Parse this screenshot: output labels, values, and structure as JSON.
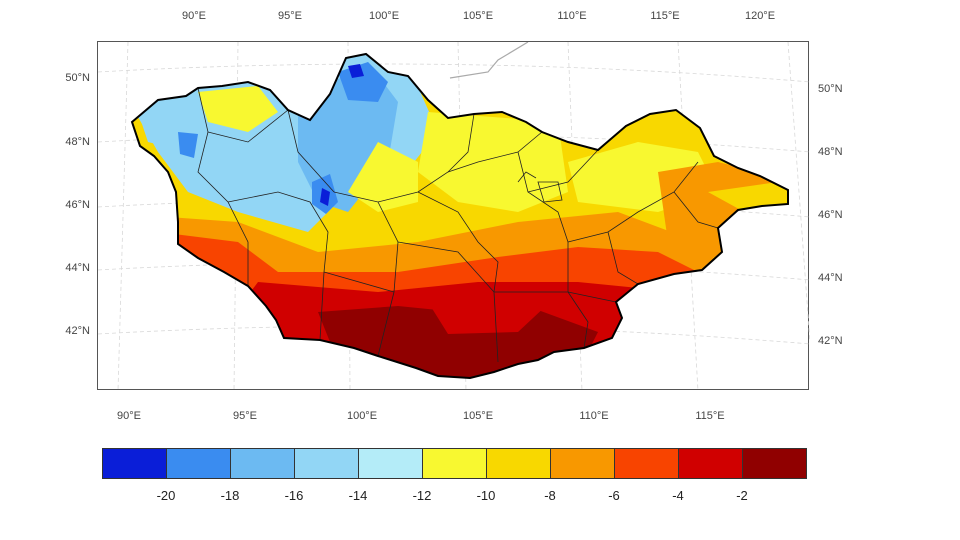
{
  "map": {
    "top_lon_labels": [
      "90°E",
      "95°E",
      "100°E",
      "105°E",
      "110°E",
      "115°E",
      "120°E"
    ],
    "bottom_lon_labels": [
      "90°E",
      "95°E",
      "100°E",
      "105°E",
      "110°E",
      "115°E"
    ],
    "left_lat_labels": [
      "50°N",
      "48°N",
      "46°N",
      "44°N",
      "42°N"
    ],
    "right_lat_labels": [
      "50°N",
      "48°N",
      "46°N",
      "44°N",
      "42°N"
    ]
  },
  "colorbar": {
    "colors": [
      "#0a1ed8",
      "#3a8cf0",
      "#6cbaf2",
      "#92d6f5",
      "#b4ecf8",
      "#f8f830",
      "#f8d800",
      "#f89800",
      "#f84400",
      "#d00000",
      "#900000"
    ],
    "tick_labels": [
      "-20",
      "-18",
      "-16",
      "-14",
      "-12",
      "-10",
      "-8",
      "-6",
      "-4",
      "-2"
    ]
  }
}
